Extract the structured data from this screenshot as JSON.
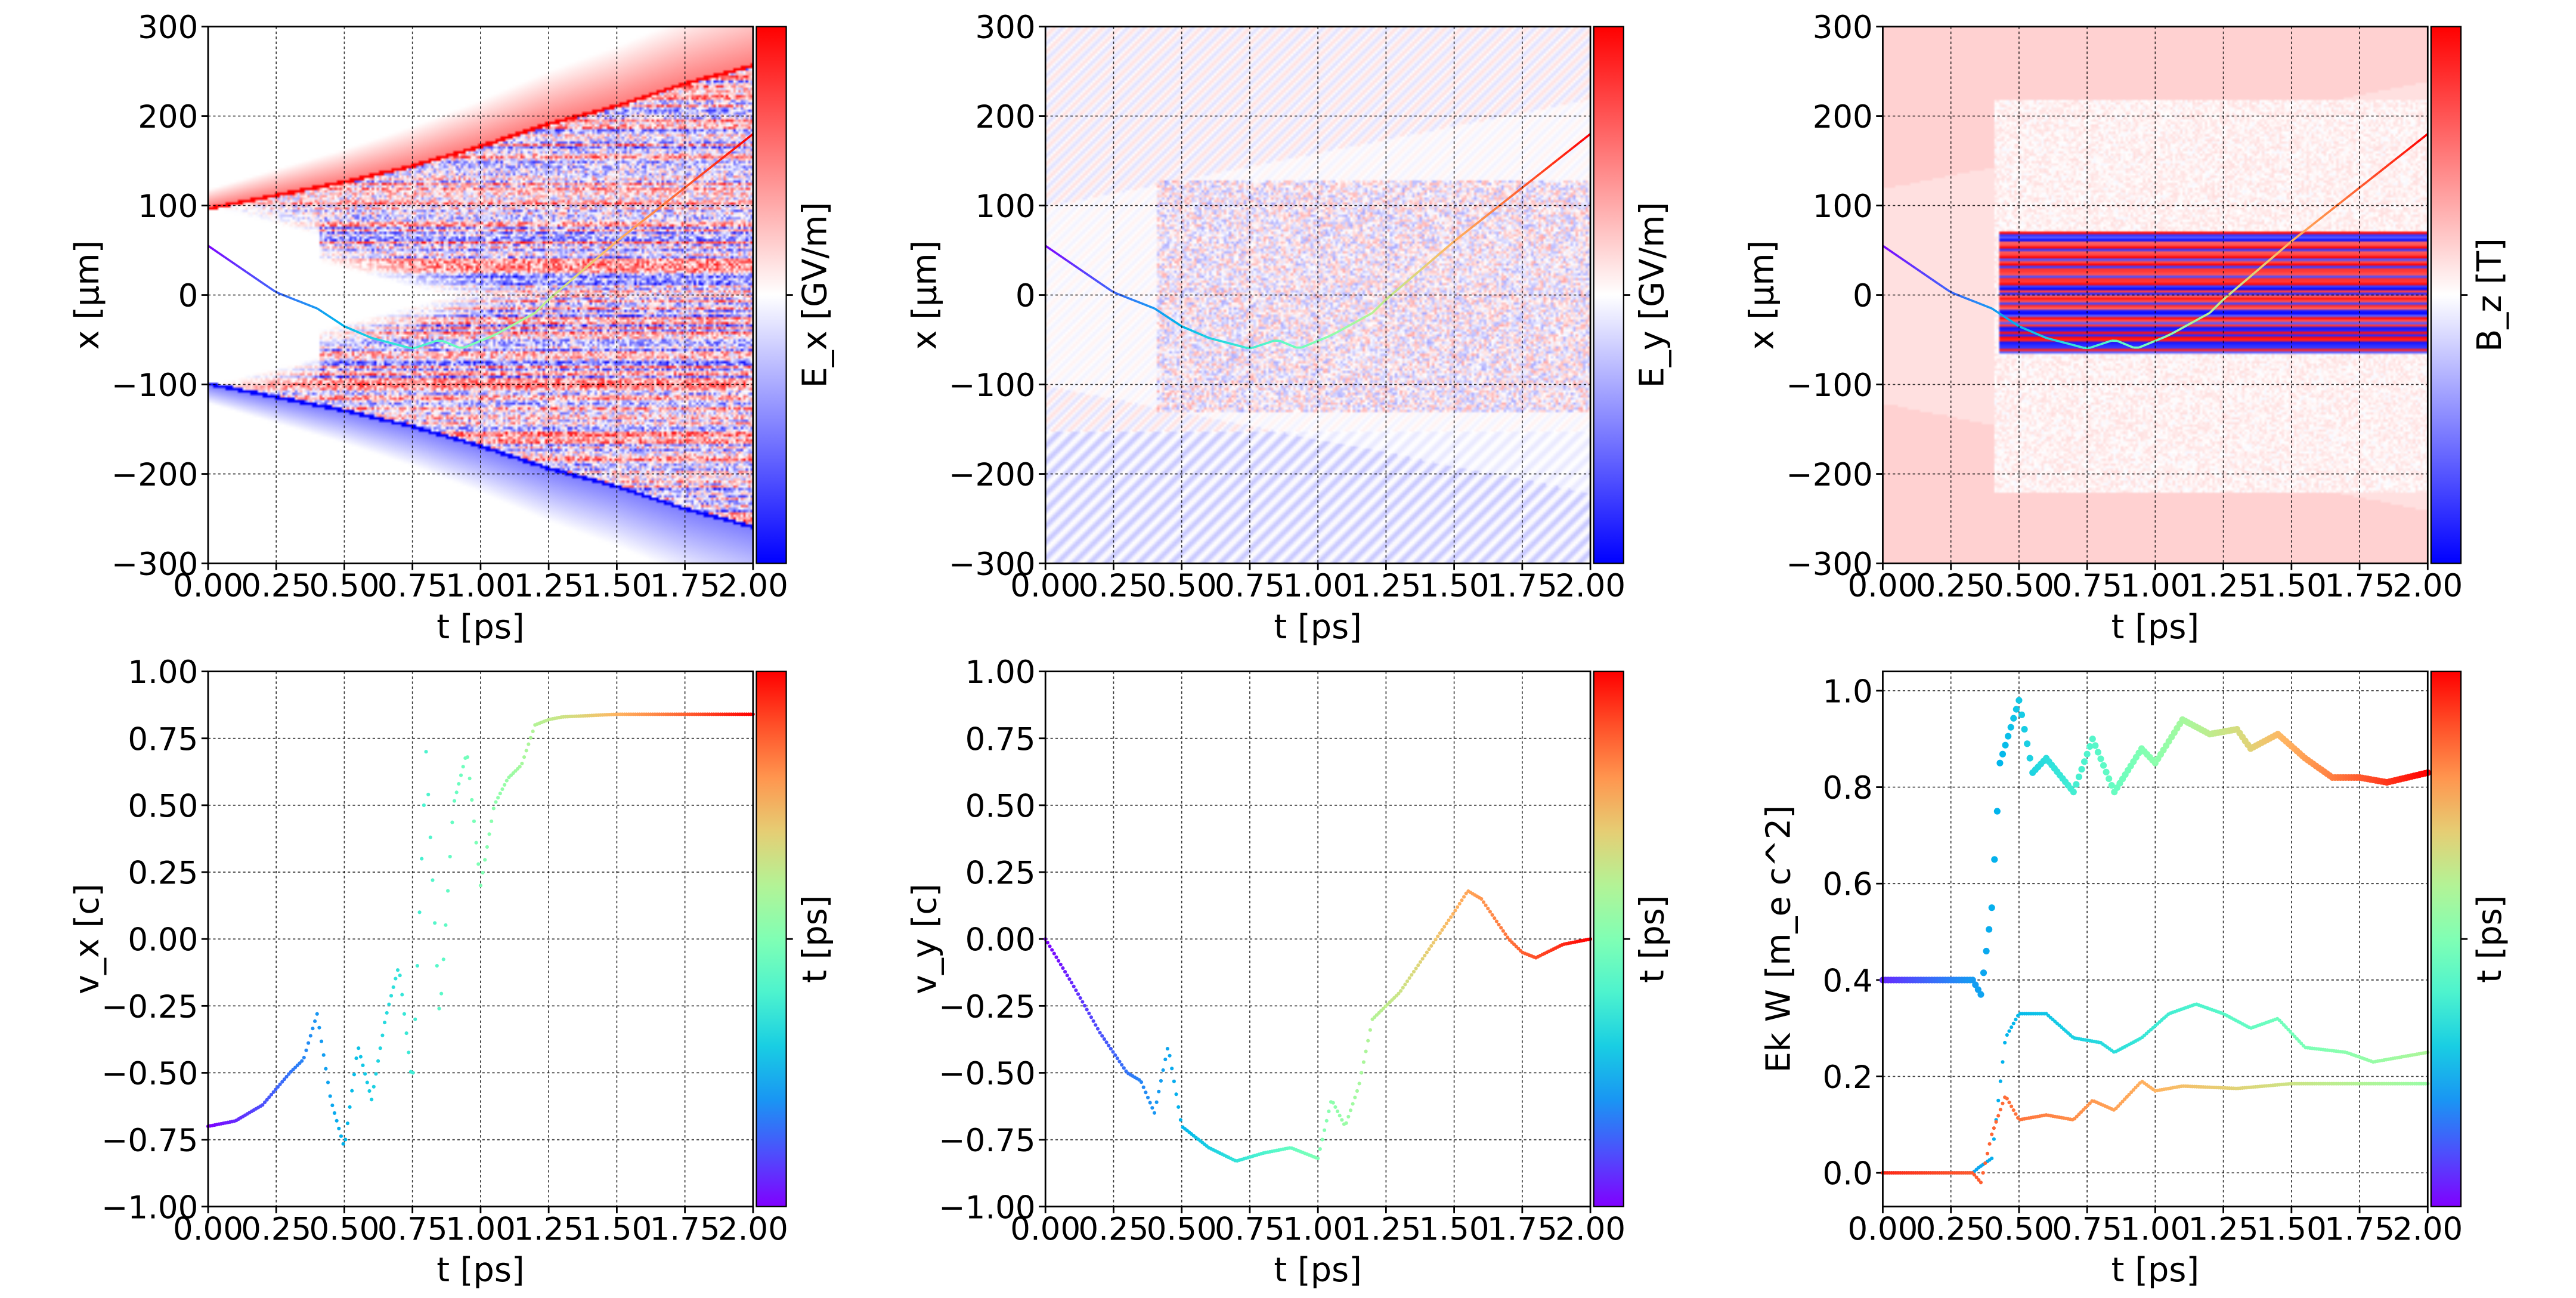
{
  "colors": {
    "rainbow": "matplotlib-rainbow",
    "field_cmap": [
      "#0000ff",
      "#ffffff",
      "#ff0000"
    ]
  },
  "chart_data": [
    {
      "type": "heatmap",
      "field": "Ex",
      "xlabel": "t  [ps]",
      "ylabel": "x  [μm]",
      "colorbar_label": "E_x  [GV/m]",
      "xlim": [
        0,
        2.0
      ],
      "ylim": [
        -300,
        300
      ],
      "xticks": [
        "0.00",
        "0.25",
        "0.50",
        "0.75",
        "1.00",
        "1.25",
        "1.50",
        "1.75",
        "2.00"
      ],
      "yticks": [
        "−300",
        "−200",
        "−100",
        "0",
        "100",
        "200",
        "300"
      ],
      "grid": true,
      "upper_front": {
        "t": [
          0,
          0.25,
          0.5,
          0.75,
          1.0,
          1.25,
          1.5,
          1.75,
          2.0
        ],
        "x": [
          100,
          115,
          130,
          148,
          170,
          195,
          215,
          240,
          260
        ]
      },
      "lower_front": {
        "t": [
          0,
          0.25,
          0.5,
          0.75,
          1.0,
          1.25,
          1.5,
          1.75,
          2.0
        ],
        "x": [
          -100,
          -115,
          -130,
          -148,
          -170,
          -195,
          -215,
          -240,
          -260
        ]
      },
      "trajectory": {
        "t": [
          0,
          0.25,
          0.4,
          0.5,
          0.6,
          0.75,
          0.85,
          0.93,
          1.05,
          1.2,
          1.25,
          1.5,
          1.75,
          2.0
        ],
        "x": [
          55,
          3,
          -15,
          -35,
          -48,
          -60,
          -50,
          -60,
          -45,
          -20,
          -5,
          60,
          120,
          180
        ]
      }
    },
    {
      "type": "heatmap",
      "field": "Ey",
      "xlabel": "t  [ps]",
      "ylabel": "x  [μm]",
      "colorbar_label": "E_y  [GV/m]",
      "xlim": [
        0,
        2.0
      ],
      "ylim": [
        -300,
        300
      ],
      "xticks": [
        "0.00",
        "0.25",
        "0.50",
        "0.75",
        "1.00",
        "1.25",
        "1.50",
        "1.75",
        "2.00"
      ],
      "yticks": [
        "−300",
        "−200",
        "−100",
        "0",
        "100",
        "200",
        "300"
      ],
      "grid": true,
      "trajectory": {
        "t": [
          0,
          0.25,
          0.4,
          0.5,
          0.6,
          0.75,
          0.85,
          0.93,
          1.05,
          1.2,
          1.25,
          1.5,
          1.75,
          2.0
        ],
        "x": [
          55,
          3,
          -15,
          -35,
          -48,
          -60,
          -50,
          -60,
          -45,
          -20,
          -5,
          60,
          120,
          180
        ]
      }
    },
    {
      "type": "heatmap",
      "field": "Bz",
      "xlabel": "t  [ps]",
      "ylabel": "x  [μm]",
      "colorbar_label": "B_z  [T]",
      "xlim": [
        0,
        2.0
      ],
      "ylim": [
        -300,
        300
      ],
      "xticks": [
        "0.00",
        "0.25",
        "0.50",
        "0.75",
        "1.00",
        "1.25",
        "1.50",
        "1.75",
        "2.00"
      ],
      "yticks": [
        "−300",
        "−200",
        "−100",
        "0",
        "100",
        "200",
        "300"
      ],
      "grid": true,
      "trajectory": {
        "t": [
          0,
          0.25,
          0.4,
          0.5,
          0.6,
          0.75,
          0.85,
          0.93,
          1.05,
          1.2,
          1.25,
          1.5,
          1.75,
          2.0
        ],
        "x": [
          55,
          3,
          -15,
          -35,
          -48,
          -60,
          -50,
          -60,
          -45,
          -20,
          -5,
          60,
          120,
          180
        ]
      }
    },
    {
      "type": "scatter",
      "xlabel": "t  [ps]",
      "ylabel": "v_x [c]",
      "colorbar_label": "t  [ps]",
      "xlim": [
        0,
        2.0
      ],
      "ylim": [
        -1.0,
        1.0
      ],
      "xticks": [
        "0.00",
        "0.25",
        "0.50",
        "0.75",
        "1.00",
        "1.25",
        "1.50",
        "1.75",
        "2.00"
      ],
      "yticks": [
        "−1.00",
        "−0.75",
        "−0.50",
        "−0.25",
        "0.00",
        "0.25",
        "0.50",
        "0.75",
        "1.00"
      ],
      "grid": true,
      "series": [
        {
          "t": [
            0,
            0.1,
            0.2,
            0.3,
            0.35,
            0.4,
            0.45,
            0.5,
            0.55,
            0.6,
            0.65,
            0.7,
            0.75,
            0.8,
            0.85,
            0.9,
            0.95,
            1.0,
            1.05,
            1.1,
            1.15,
            1.2,
            1.25,
            1.3,
            1.5,
            1.75,
            2.0
          ],
          "v": [
            -0.7,
            -0.68,
            -0.62,
            -0.5,
            -0.45,
            -0.28,
            -0.6,
            -0.78,
            -0.4,
            -0.6,
            -0.3,
            -0.1,
            -0.55,
            0.7,
            -0.3,
            0.5,
            0.7,
            0.2,
            0.5,
            0.6,
            0.65,
            0.8,
            0.82,
            0.83,
            0.84,
            0.84,
            0.84
          ]
        }
      ]
    },
    {
      "type": "scatter",
      "xlabel": "t  [ps]",
      "ylabel": "v_y [c]",
      "colorbar_label": "t  [ps]",
      "xlim": [
        0,
        2.0
      ],
      "ylim": [
        -1.0,
        1.0
      ],
      "xticks": [
        "0.00",
        "0.25",
        "0.50",
        "0.75",
        "1.00",
        "1.25",
        "1.50",
        "1.75",
        "2.00"
      ],
      "yticks": [
        "−1.00",
        "−0.75",
        "−0.50",
        "−0.25",
        "0.00",
        "0.25",
        "0.50",
        "0.75",
        "1.00"
      ],
      "grid": true,
      "series": [
        {
          "t": [
            0,
            0.1,
            0.2,
            0.3,
            0.35,
            0.4,
            0.45,
            0.5,
            0.6,
            0.7,
            0.8,
            0.9,
            1.0,
            1.05,
            1.1,
            1.15,
            1.2,
            1.3,
            1.4,
            1.5,
            1.55,
            1.6,
            1.7,
            1.75,
            1.8,
            1.9,
            2.0
          ],
          "v": [
            0,
            -0.17,
            -0.35,
            -0.5,
            -0.53,
            -0.65,
            -0.4,
            -0.7,
            -0.78,
            -0.83,
            -0.8,
            -0.78,
            -0.82,
            -0.6,
            -0.7,
            -0.55,
            -0.3,
            -0.2,
            -0.05,
            0.1,
            0.18,
            0.15,
            0.0,
            -0.05,
            -0.07,
            -0.02,
            0.0
          ]
        }
      ]
    },
    {
      "type": "scatter",
      "xlabel": "t  [ps]",
      "ylabel": "Ek W [m_e c^2]",
      "colorbar_label": "t  [ps]",
      "xlim": [
        0,
        2.0
      ],
      "ylim": [
        -0.07,
        1.04
      ],
      "xticks": [
        "0.00",
        "0.25",
        "0.50",
        "0.75",
        "1.00",
        "1.25",
        "1.50",
        "1.75",
        "2.00"
      ],
      "yticks": [
        "0.0",
        "0.2",
        "0.4",
        "0.6",
        "0.8",
        "1.0"
      ],
      "grid": true,
      "series": [
        {
          "t": [
            0,
            0.33,
            0.36,
            0.4,
            0.43,
            0.5,
            0.55,
            0.6,
            0.7,
            0.77,
            0.85,
            0.95,
            1.0,
            1.1,
            1.2,
            1.3,
            1.35,
            1.45,
            1.55,
            1.65,
            1.75,
            1.85,
            2.0
          ],
          "v": [
            0.4,
            0.4,
            0.37,
            0.55,
            0.85,
            0.98,
            0.83,
            0.86,
            0.79,
            0.9,
            0.79,
            0.88,
            0.85,
            0.94,
            0.91,
            0.92,
            0.88,
            0.91,
            0.86,
            0.82,
            0.82,
            0.81,
            0.83
          ]
        },
        {
          "t": [
            0,
            0.33,
            0.35,
            0.4,
            0.45,
            0.5,
            0.6,
            0.7,
            0.8,
            0.85,
            0.95,
            1.05,
            1.15,
            1.25,
            1.35,
            1.45,
            1.55,
            1.7,
            1.8,
            1.9,
            2.0
          ],
          "v": [
            0.0,
            0.0,
            0.01,
            0.03,
            0.28,
            0.33,
            0.33,
            0.28,
            0.27,
            0.25,
            0.28,
            0.33,
            0.35,
            0.33,
            0.3,
            0.32,
            0.26,
            0.25,
            0.23,
            0.24,
            0.25
          ]
        },
        {
          "t": [
            0,
            0.33,
            0.36,
            0.4,
            0.45,
            0.5,
            0.6,
            0.7,
            0.77,
            0.85,
            0.95,
            1.0,
            1.1,
            1.3,
            1.5,
            2.0
          ],
          "v": [
            0.0,
            0.0,
            -0.02,
            0.08,
            0.16,
            0.11,
            0.12,
            0.11,
            0.15,
            0.13,
            0.19,
            0.17,
            0.18,
            0.175,
            0.185,
            0.185
          ]
        }
      ]
    }
  ]
}
